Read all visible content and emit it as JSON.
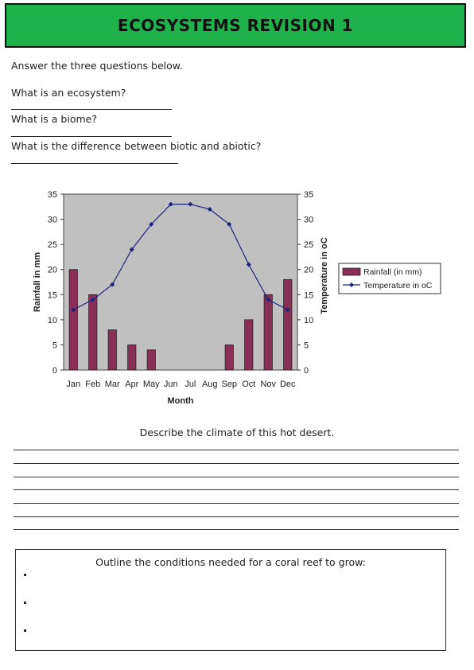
{
  "header": {
    "title": "ECOSYSTEMS REVISION 1"
  },
  "intro": "Answer the three questions below.",
  "questions": [
    "What is an ecosystem?",
    "What is a biome?",
    "What is the difference between biotic and abiotic?"
  ],
  "chart_data": {
    "type": "bar+line",
    "categories": [
      "Jan",
      "Feb",
      "Mar",
      "Apr",
      "May",
      "Jun",
      "Jul",
      "Aug",
      "Sep",
      "Oct",
      "Nov",
      "Dec"
    ],
    "series": [
      {
        "name": "Rainfall (in mm)",
        "type": "bar",
        "values": [
          20,
          15,
          8,
          5,
          4,
          0,
          0,
          0,
          5,
          10,
          15,
          18
        ],
        "color": "#8b2e56"
      },
      {
        "name": "Temperature in oC",
        "type": "line",
        "values": [
          12,
          14,
          17,
          24,
          29,
          33,
          33,
          32,
          29,
          21,
          14,
          12
        ],
        "color": "#1a237e"
      }
    ],
    "xlabel": "Month",
    "ylabel": "Rainfall in mm",
    "y2label": "Temperature in oC",
    "ylim": [
      0,
      35
    ],
    "y2lim": [
      0,
      35
    ],
    "yticks": [
      "0",
      "5",
      "10",
      "15",
      "20",
      "25",
      "30",
      "35"
    ],
    "plot_bg": "#c0c0c0",
    "legend_position": "right"
  },
  "describe_prompt": "Describe the climate of this hot desert.",
  "coral_prompt": "Outline the conditions needed for a coral reef  to grow:"
}
